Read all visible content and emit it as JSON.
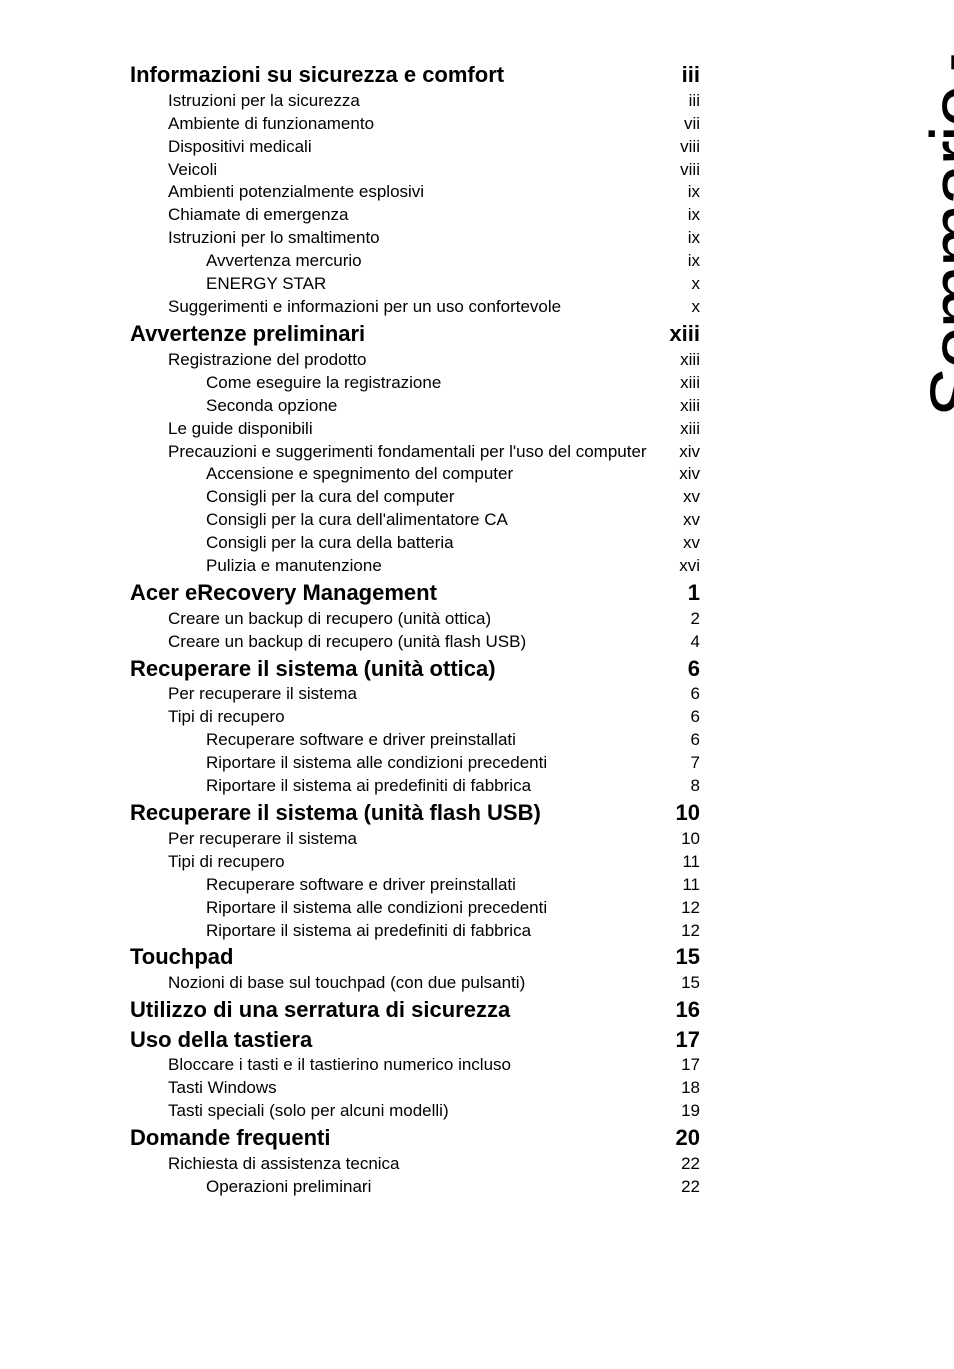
{
  "side_title": "Sommario",
  "toc": [
    {
      "level": 0,
      "title": "Informazioni su sicurezza e comfort",
      "page": "iii"
    },
    {
      "level": 1,
      "title": "Istruzioni per la sicurezza",
      "page": "iii"
    },
    {
      "level": 1,
      "title": "Ambiente di funzionamento",
      "page": "vii"
    },
    {
      "level": 1,
      "title": "Dispositivi medicali",
      "page": "viii"
    },
    {
      "level": 1,
      "title": "Veicoli",
      "page": "viii"
    },
    {
      "level": 1,
      "title": "Ambienti potenzialmente esplosivi",
      "page": "ix"
    },
    {
      "level": 1,
      "title": "Chiamate di emergenza",
      "page": "ix"
    },
    {
      "level": 1,
      "title": "Istruzioni per lo smaltimento",
      "page": "ix"
    },
    {
      "level": 2,
      "title": "Avvertenza mercurio",
      "page": "ix"
    },
    {
      "level": 2,
      "title": "ENERGY STAR",
      "page": "x"
    },
    {
      "level": 1,
      "title": "Suggerimenti e informazioni per un uso confortevole",
      "page": "x"
    },
    {
      "level": 0,
      "title": "Avvertenze preliminari",
      "page": "xiii"
    },
    {
      "level": 1,
      "title": "Registrazione del prodotto",
      "page": "xiii"
    },
    {
      "level": 2,
      "title": "Come eseguire la registrazione",
      "page": "xiii"
    },
    {
      "level": 2,
      "title": "Seconda opzione",
      "page": "xiii"
    },
    {
      "level": 1,
      "title": "Le guide disponibili",
      "page": "xiii"
    },
    {
      "level": 1,
      "title": "Precauzioni e suggerimenti fondamentali per l'uso del computer",
      "page": "xiv"
    },
    {
      "level": 2,
      "title": "Accensione e spegnimento del computer",
      "page": "xiv"
    },
    {
      "level": 2,
      "title": "Consigli per la cura del computer",
      "page": "xv"
    },
    {
      "level": 2,
      "title": "Consigli per la cura dell'alimentatore CA",
      "page": "xv"
    },
    {
      "level": 2,
      "title": "Consigli per la cura della batteria",
      "page": "xv"
    },
    {
      "level": 2,
      "title": "Pulizia e manutenzione",
      "page": "xvi"
    },
    {
      "level": 0,
      "title": "Acer eRecovery Management",
      "page": "1"
    },
    {
      "level": 1,
      "title": "Creare un backup di recupero (unità ottica)",
      "page": "2"
    },
    {
      "level": 1,
      "title": "Creare un backup di recupero (unità flash USB)",
      "page": "4"
    },
    {
      "level": 0,
      "title": "Recuperare il sistema (unità ottica)",
      "page": "6"
    },
    {
      "level": 1,
      "title": "Per recuperare il sistema",
      "page": "6"
    },
    {
      "level": 1,
      "title": "Tipi di recupero",
      "page": "6"
    },
    {
      "level": 2,
      "title": "Recuperare software e driver preinstallati",
      "page": "6"
    },
    {
      "level": 2,
      "title": "Riportare il sistema alle condizioni precedenti",
      "page": "7"
    },
    {
      "level": 2,
      "title": "Riportare il sistema ai predefiniti di fabbrica",
      "page": "8"
    },
    {
      "level": 0,
      "title": "Recuperare il sistema (unità flash USB)",
      "page": "10"
    },
    {
      "level": 1,
      "title": "Per recuperare il sistema",
      "page": "10"
    },
    {
      "level": 1,
      "title": "Tipi di recupero",
      "page": "11"
    },
    {
      "level": 2,
      "title": "Recuperare software e driver preinstallati",
      "page": "11"
    },
    {
      "level": 2,
      "title": "Riportare il sistema alle condizioni precedenti",
      "page": "12"
    },
    {
      "level": 2,
      "title": "Riportare il sistema ai predefiniti di fabbrica",
      "page": "12"
    },
    {
      "level": 0,
      "title": "Touchpad",
      "page": "15"
    },
    {
      "level": 1,
      "title": "Nozioni di base sul touchpad (con due pulsanti)",
      "page": "15"
    },
    {
      "level": 0,
      "title": "Utilizzo di una serratura di sicurezza",
      "page": "16"
    },
    {
      "level": 0,
      "title": "Uso della tastiera",
      "page": "17"
    },
    {
      "level": 1,
      "title": "Bloccare i tasti e il tastierino numerico incluso",
      "page": "17"
    },
    {
      "level": 1,
      "title": "Tasti Windows",
      "page": "18"
    },
    {
      "level": 1,
      "title": "Tasti speciali (solo per alcuni modelli)",
      "page": "19"
    },
    {
      "level": 0,
      "title": "Domande frequenti",
      "page": "20"
    },
    {
      "level": 1,
      "title": "Richiesta di assistenza tecnica",
      "page": "22"
    },
    {
      "level": 2,
      "title": "Operazioni preliminari",
      "page": "22"
    }
  ]
}
